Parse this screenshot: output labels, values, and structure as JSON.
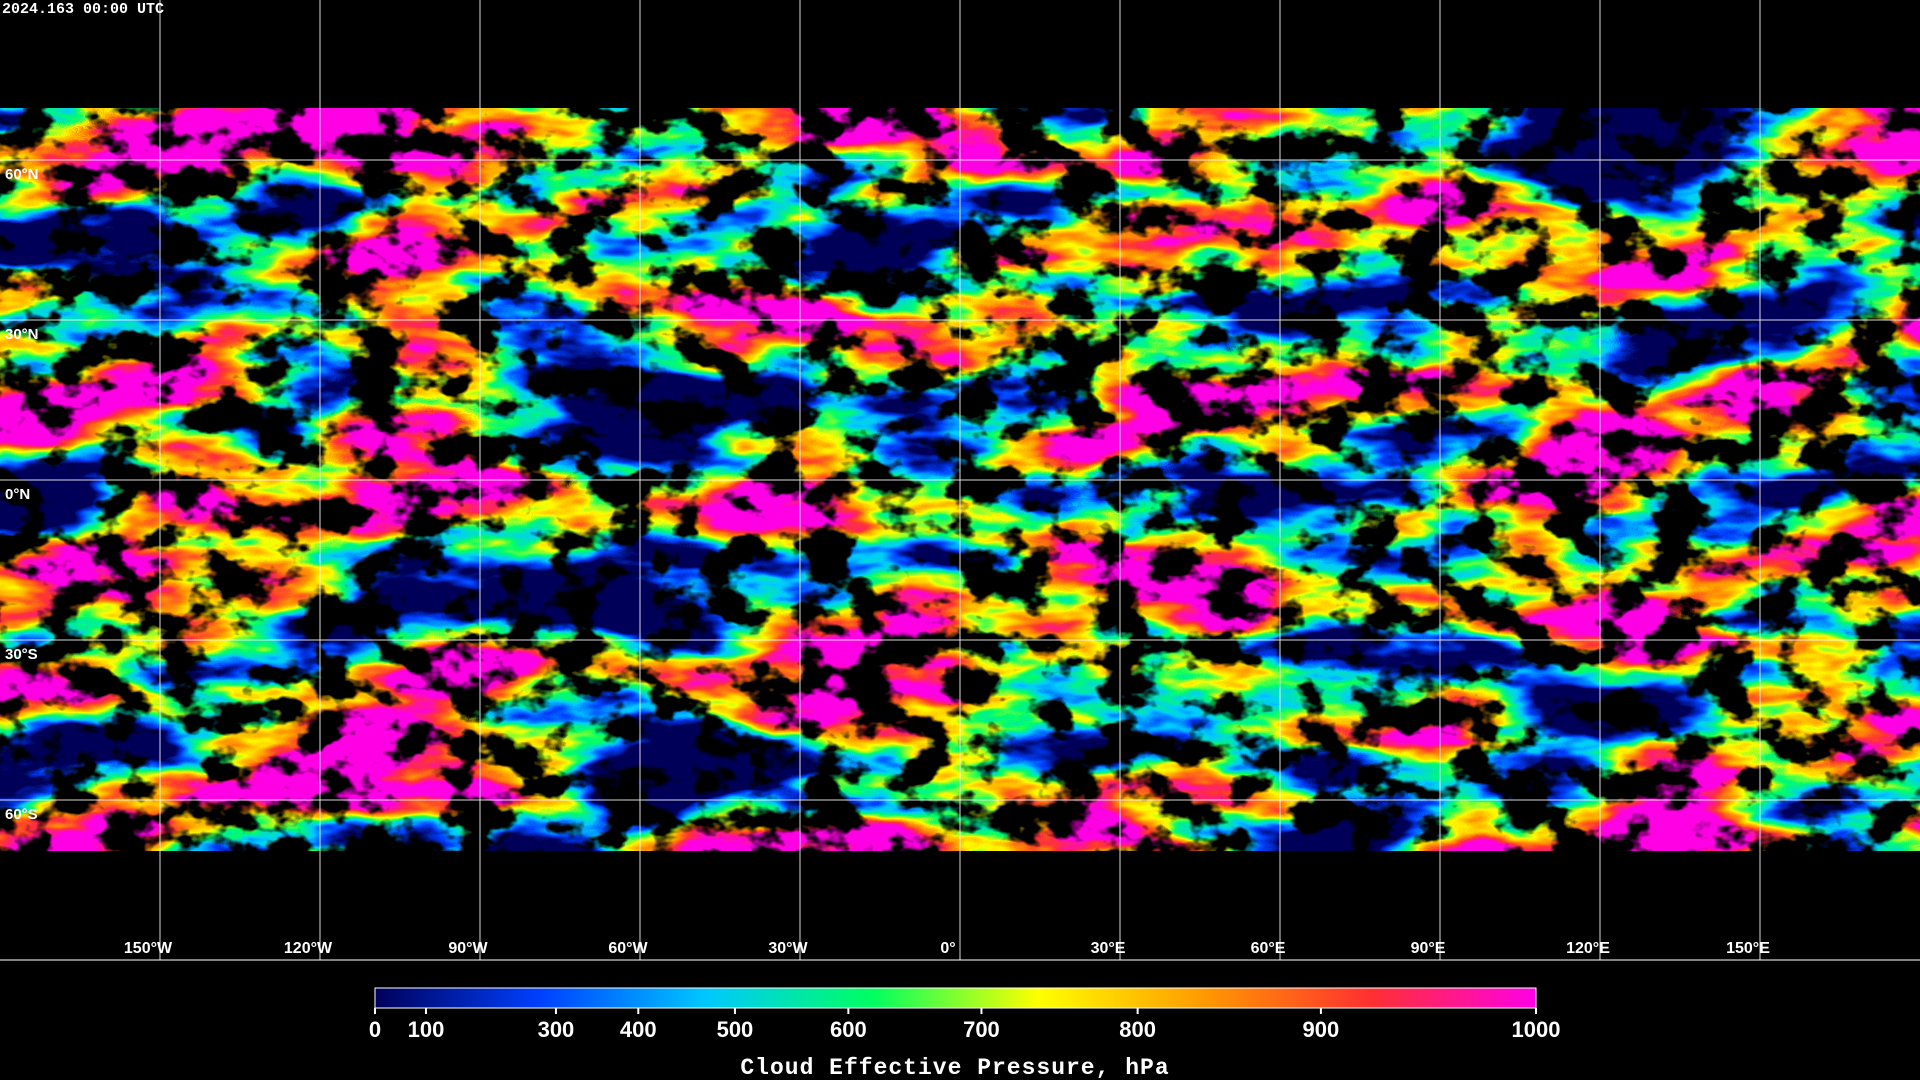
{
  "header": {
    "timestamp": "2024.163 00:00 UTC"
  },
  "map": {
    "lat_lines": [
      {
        "value": 60,
        "label": "60°N"
      },
      {
        "value": 30,
        "label": "30°N"
      },
      {
        "value": 0,
        "label": "0°N"
      },
      {
        "value": -30,
        "label": "30°S"
      },
      {
        "value": -60,
        "label": "60°S"
      }
    ],
    "lon_lines": [
      {
        "value": -150,
        "label": "150°W"
      },
      {
        "value": -120,
        "label": "120°W"
      },
      {
        "value": -90,
        "label": "90°W"
      },
      {
        "value": -60,
        "label": "60°W"
      },
      {
        "value": -30,
        "label": "30°W"
      },
      {
        "value": 0,
        "label": "0°"
      },
      {
        "value": 30,
        "label": "30°E"
      },
      {
        "value": 60,
        "label": "60°E"
      },
      {
        "value": 90,
        "label": "90°E"
      },
      {
        "value": 120,
        "label": "120°E"
      },
      {
        "value": 150,
        "label": "150°E"
      }
    ]
  },
  "colorbar": {
    "title": "Cloud Effective Pressure, hPa",
    "lim": [
      0,
      1000
    ],
    "ticks": [
      0,
      100,
      300,
      400,
      500,
      600,
      700,
      800,
      900,
      1000
    ],
    "colors": [
      "#00005a",
      "#0040ff",
      "#00c8ff",
      "#00ff60",
      "#ffff00",
      "#ff9900",
      "#ff3030",
      "#ff00e6"
    ]
  }
}
